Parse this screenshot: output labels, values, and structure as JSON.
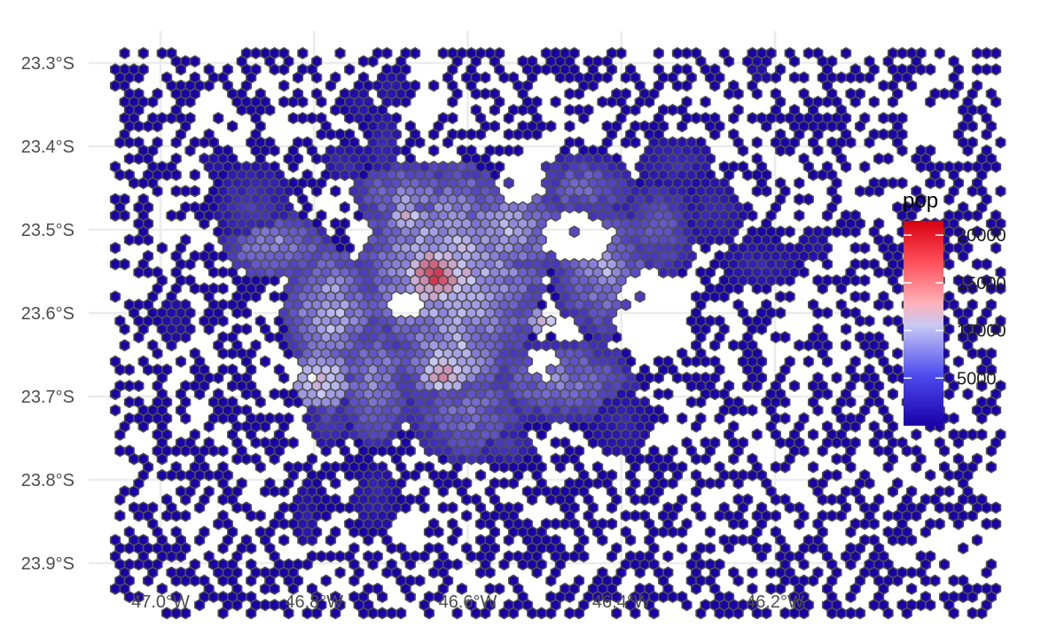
{
  "chart_data": {
    "type": "heatmap",
    "title": "",
    "xlabel": "",
    "ylabel": "",
    "x_ticks": [
      {
        "value": -47.0,
        "label": "47.0°W"
      },
      {
        "value": -46.8,
        "label": "46.8°W"
      },
      {
        "value": -46.6,
        "label": "46.6°W"
      },
      {
        "value": -46.4,
        "label": "46.4°W"
      },
      {
        "value": -46.2,
        "label": "46.2°W"
      }
    ],
    "y_ticks": [
      {
        "value": -23.3,
        "label": "23.3°S"
      },
      {
        "value": -23.4,
        "label": "23.4°S"
      },
      {
        "value": -23.5,
        "label": "23.5°S"
      },
      {
        "value": -23.6,
        "label": "23.6°S"
      },
      {
        "value": -23.7,
        "label": "23.7°S"
      },
      {
        "value": -23.8,
        "label": "23.8°S"
      },
      {
        "value": -23.9,
        "label": "23.9°S"
      }
    ],
    "xlim": [
      -47.1,
      -46.07
    ],
    "ylim": [
      -23.91,
      -23.26
    ],
    "grid": true,
    "legend": {
      "title": "pop",
      "placement": "right",
      "range": [
        0,
        21500
      ],
      "breaks": [
        {
          "value": 20000,
          "label": "20000"
        },
        {
          "value": 15000,
          "label": "15000"
        },
        {
          "value": 10000,
          "label": "10000"
        },
        {
          "value": 5000,
          "label": "5000"
        }
      ],
      "colors": {
        "low": "#1a00a8",
        "mid": "#c8c8f4",
        "high": "#d7000f"
      },
      "midpoint": 10500
    },
    "hex_outline_color": "#505050",
    "blobs": [
      {
        "lon": -46.62,
        "lat": -23.55,
        "rx": 0.12,
        "ry": 0.13,
        "pop": 9000
      },
      {
        "lon": -46.55,
        "lat": -23.5,
        "rx": 0.1,
        "ry": 0.06,
        "pop": 7000
      },
      {
        "lon": -46.78,
        "lat": -23.6,
        "rx": 0.06,
        "ry": 0.08,
        "pop": 8000
      },
      {
        "lon": -46.62,
        "lat": -23.65,
        "rx": 0.08,
        "ry": 0.07,
        "pop": 8000
      },
      {
        "lon": -46.42,
        "lat": -23.55,
        "rx": 0.07,
        "ry": 0.08,
        "pop": 6000
      },
      {
        "lon": -46.35,
        "lat": -23.5,
        "rx": 0.05,
        "ry": 0.06,
        "pop": 4000
      },
      {
        "lon": -46.22,
        "lat": -23.54,
        "rx": 0.05,
        "ry": 0.03,
        "pop": 1500
      },
      {
        "lon": -46.48,
        "lat": -23.68,
        "rx": 0.1,
        "ry": 0.05,
        "pop": 5500
      },
      {
        "lon": -46.72,
        "lat": -23.68,
        "rx": 0.05,
        "ry": 0.08,
        "pop": 6000
      },
      {
        "lon": -46.6,
        "lat": -23.72,
        "rx": 0.08,
        "ry": 0.06,
        "pop": 5000
      },
      {
        "lon": -46.85,
        "lat": -23.52,
        "rx": 0.07,
        "ry": 0.04,
        "pop": 6500
      },
      {
        "lon": -46.88,
        "lat": -23.47,
        "rx": 0.05,
        "ry": 0.05,
        "pop": 2500
      },
      {
        "lon": -46.45,
        "lat": -23.45,
        "rx": 0.07,
        "ry": 0.04,
        "pop": 4500
      },
      {
        "lon": -46.33,
        "lat": -23.42,
        "rx": 0.05,
        "ry": 0.03,
        "pop": 2000
      },
      {
        "lon": -46.28,
        "lat": -23.48,
        "rx": 0.04,
        "ry": 0.04,
        "pop": 1800
      },
      {
        "lon": -46.68,
        "lat": -23.46,
        "rx": 0.07,
        "ry": 0.04,
        "pop": 6000
      },
      {
        "lon": -46.4,
        "lat": -23.73,
        "rx": 0.04,
        "ry": 0.04,
        "pop": 1500
      },
      {
        "lon": -46.55,
        "lat": -23.76,
        "rx": 0.04,
        "ry": 0.02,
        "pop": 2500
      },
      {
        "lon": -46.78,
        "lat": -23.72,
        "rx": 0.03,
        "ry": 0.04,
        "pop": 3000
      },
      {
        "lon": -46.71,
        "lat": -23.4,
        "rx": 0.02,
        "ry": 0.04,
        "pop": 2000
      },
      {
        "lon": -46.76,
        "lat": -23.42,
        "rx": 0.03,
        "ry": 0.02,
        "pop": 2000
      },
      {
        "lon": -46.74,
        "lat": -23.35,
        "rx": 0.02,
        "ry": 0.02,
        "pop": 1200
      },
      {
        "lon": -46.7,
        "lat": -23.33,
        "rx": 0.02,
        "ry": 0.02,
        "pop": 1200
      },
      {
        "lon": -46.22,
        "lat": -23.31,
        "rx": 0.015,
        "ry": 0.015,
        "pop": 900
      },
      {
        "lon": -46.98,
        "lat": -23.61,
        "rx": 0.02,
        "ry": 0.03,
        "pop": 900
      },
      {
        "lon": -46.72,
        "lat": -23.82,
        "rx": 0.03,
        "ry": 0.04,
        "pop": 1500
      },
      {
        "lon": -46.81,
        "lat": -23.84,
        "rx": 0.015,
        "ry": 0.04,
        "pop": 1200
      },
      {
        "lon": -46.93,
        "lat": -23.42,
        "rx": 0.02,
        "ry": 0.015,
        "pop": 1000
      },
      {
        "lon": -46.15,
        "lat": -23.52,
        "rx": 0.02,
        "ry": 0.02,
        "pop": 900
      }
    ],
    "hotspots": [
      {
        "lon": -46.64,
        "lat": -23.555,
        "r": 0.025,
        "pop": 19000
      },
      {
        "lon": -46.63,
        "lat": -23.67,
        "r": 0.02,
        "pop": 16000
      },
      {
        "lon": -46.79,
        "lat": -23.68,
        "r": 0.025,
        "pop": 12500
      },
      {
        "lon": -46.68,
        "lat": -23.485,
        "r": 0.015,
        "pop": 13000
      },
      {
        "lon": -46.5,
        "lat": -23.61,
        "r": 0.015,
        "pop": 12000
      },
      {
        "lon": -46.42,
        "lat": -23.545,
        "r": 0.01,
        "pop": 13000
      }
    ],
    "holes": [
      {
        "lon": -46.46,
        "lat": -23.51,
        "rx": 0.05,
        "ry": 0.03
      },
      {
        "lon": -46.36,
        "lat": -23.6,
        "rx": 0.05,
        "ry": 0.05
      },
      {
        "lon": -46.68,
        "lat": -23.59,
        "rx": 0.02,
        "ry": 0.02
      },
      {
        "lon": -46.53,
        "lat": -23.44,
        "rx": 0.03,
        "ry": 0.03
      },
      {
        "lon": -46.5,
        "lat": -23.66,
        "rx": 0.02,
        "ry": 0.02
      },
      {
        "lon": -46.74,
        "lat": -23.5,
        "rx": 0.015,
        "ry": 0.015
      }
    ]
  }
}
